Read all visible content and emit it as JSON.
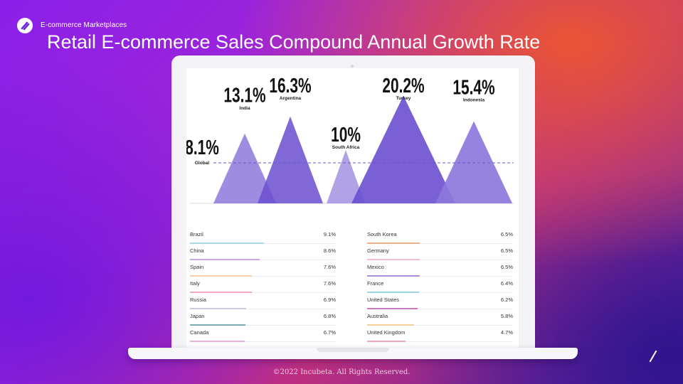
{
  "header": {
    "kicker": "E-commerce Marketplaces",
    "title": "Retail E-commerce Sales Compound Annual Growth Rate"
  },
  "footer": {
    "copyright": "©2022 Incubeta. All Rights Reserved."
  },
  "colors": {
    "peak": "#6a4fd0",
    "peak_light": "#8d78dc",
    "average_line": "#6a56c8"
  },
  "chart_data": [
    {
      "type": "area",
      "average": {
        "label": "Global",
        "value": 8.1,
        "value_label": "8.1%"
      },
      "peaks": [
        {
          "name": "India",
          "value": 13.1,
          "value_label": "13.1%"
        },
        {
          "name": "Argentina",
          "value": 16.3,
          "value_label": "16.3%"
        },
        {
          "name": "South Africa",
          "value": 10,
          "value_label": "10%"
        },
        {
          "name": "Turkey",
          "value": 20.2,
          "value_label": "20.2%"
        },
        {
          "name": "Indonesia",
          "value": 15.4,
          "value_label": "15.4%"
        }
      ]
    },
    {
      "type": "table",
      "columns": [
        [
          {
            "name": "Brazil",
            "value": 9.1,
            "value_label": "9.1%",
            "color": "#a8d8ee"
          },
          {
            "name": "China",
            "value": 8.6,
            "value_label": "8.6%",
            "color": "#c8a6ea"
          },
          {
            "name": "Spain",
            "value": 7.6,
            "value_label": "7.6%",
            "color": "#f6cda6"
          },
          {
            "name": "Italy",
            "value": 7.6,
            "value_label": "7.6%",
            "color": "#f2a6c6"
          },
          {
            "name": "Russia",
            "value": 6.9,
            "value_label": "6.9%",
            "color": "#cfc6ea"
          },
          {
            "name": "Japan",
            "value": 6.8,
            "value_label": "6.8%",
            "color": "#7aaab4"
          },
          {
            "name": "Canada",
            "value": 6.7,
            "value_label": "6.7%",
            "color": "#e8aee2"
          }
        ],
        [
          {
            "name": "South Korea",
            "value": 6.5,
            "value_label": "6.5%",
            "color": "#eab28a"
          },
          {
            "name": "Germany",
            "value": 6.5,
            "value_label": "6.5%",
            "color": "#f4bcd6"
          },
          {
            "name": "Mexico",
            "value": 6.5,
            "value_label": "6.5%",
            "color": "#a690dc"
          },
          {
            "name": "France",
            "value": 6.4,
            "value_label": "6.4%",
            "color": "#9cd4e4"
          },
          {
            "name": "United States",
            "value": 6.2,
            "value_label": "6.2%",
            "color": "#c27ac2"
          },
          {
            "name": "Australia",
            "value": 5.8,
            "value_label": "5.8%",
            "color": "#f2d098"
          },
          {
            "name": "United Kingdom",
            "value": 4.7,
            "value_label": "4.7%",
            "color": "#f2a6c6"
          }
        ]
      ]
    }
  ]
}
